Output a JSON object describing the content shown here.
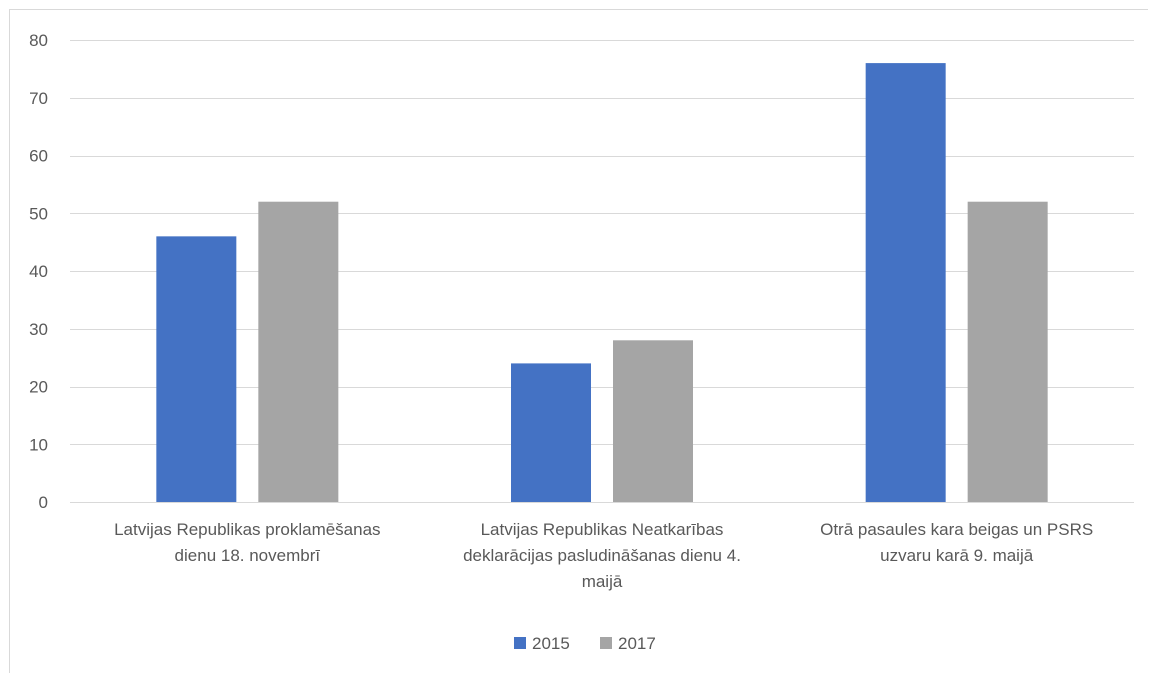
{
  "chart_data": {
    "type": "bar",
    "title": "",
    "xlabel": "",
    "ylabel": "",
    "ylim": [
      0,
      80
    ],
    "yticks": [
      0,
      10,
      20,
      30,
      40,
      50,
      60,
      70,
      80
    ],
    "grid": true,
    "legend_position": "bottom",
    "categories": [
      [
        "Latvijas Republikas proklamēšanas",
        "dienu 18. novembrī"
      ],
      [
        "Latvijas Republikas Neatkarības",
        "deklarācijas pasludināšanas dienu 4.",
        "maijā"
      ],
      [
        "Otrā pasaules kara beigas un PSRS",
        "uzvaru karā 9. maijā"
      ]
    ],
    "series": [
      {
        "name": "2015",
        "color": "#4472c4",
        "values": [
          46,
          24,
          76
        ]
      },
      {
        "name": "2017",
        "color": "#a5a5a5",
        "values": [
          52,
          28,
          52
        ]
      }
    ]
  }
}
